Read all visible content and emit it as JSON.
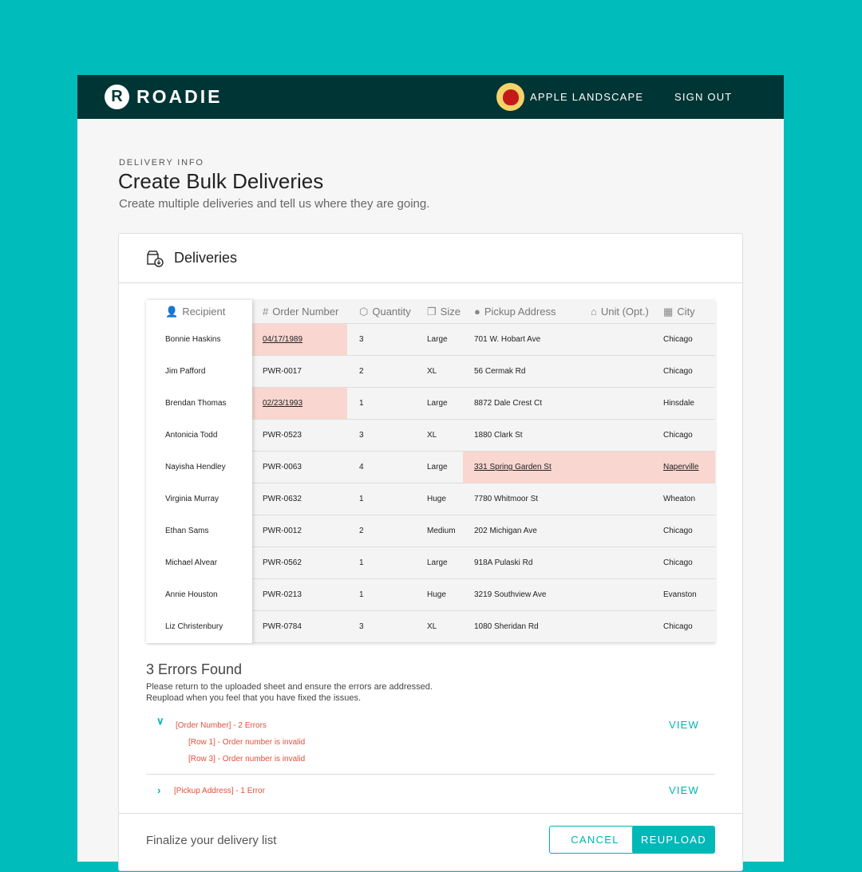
{
  "header": {
    "logo": "ROADIE",
    "account": "APPLE LANDSCAPE",
    "sign_out": "SIGN OUT"
  },
  "page": {
    "eyebrow": "DELIVERY INFO",
    "title": "Create Bulk Deliveries",
    "subtitle": "Create multiple deliveries and tell us where they are going."
  },
  "card": {
    "title": "Deliveries"
  },
  "table": {
    "columns": [
      "Recipient",
      "Order Number",
      "Quantity",
      "Size",
      "Pickup Address",
      "Unit (Opt.)",
      "City"
    ],
    "rows": [
      {
        "recipient": "Bonnie Haskins",
        "order": "04/17/1989",
        "qty": "3",
        "size": "Large",
        "address": "701 W. Hobart Ave",
        "unit": "",
        "city": "Chicago",
        "order_error": true
      },
      {
        "recipient": "Jim Pafford",
        "order": "PWR-0017",
        "qty": "2",
        "size": "XL",
        "address": "56 Cermak Rd",
        "unit": "",
        "city": "Chicago"
      },
      {
        "recipient": "Brendan Thomas",
        "order": "02/23/1993",
        "qty": "1",
        "size": "Large",
        "address": "8872 Dale Crest Ct",
        "unit": "",
        "city": "Hinsdale",
        "order_error": true
      },
      {
        "recipient": "Antonicia Todd",
        "order": "PWR-0523",
        "qty": "3",
        "size": "XL",
        "address": "1880 Clark St",
        "unit": "",
        "city": "Chicago"
      },
      {
        "recipient": "Nayisha Hendley",
        "order": "PWR-0063",
        "qty": "4",
        "size": "Large",
        "address": "331 Spring Garden St",
        "unit": "",
        "city": "Naperville",
        "address_error": true
      },
      {
        "recipient": "Virginia Murray",
        "order": "PWR-0632",
        "qty": "1",
        "size": "Huge",
        "address": "7780 Whitmoor St",
        "unit": "",
        "city": "Wheaton"
      },
      {
        "recipient": "Ethan Sams",
        "order": "PWR-0012",
        "qty": "2",
        "size": "Medium",
        "address": "202 Michigan Ave",
        "unit": "",
        "city": "Chicago"
      },
      {
        "recipient": "Michael Alvear",
        "order": "PWR-0562",
        "qty": "1",
        "size": "Large",
        "address": "918A Pulaski Rd",
        "unit": "",
        "city": "Chicago"
      },
      {
        "recipient": "Annie Houston",
        "order": "PWR-0213",
        "qty": "1",
        "size": "Huge",
        "address": "3219 Southview Ave",
        "unit": "",
        "city": "Evanston"
      },
      {
        "recipient": "Liz  Christenbury",
        "order": "PWR-0784",
        "qty": "3",
        "size": "XL",
        "address": "1080 Sheridan Rd",
        "unit": "",
        "city": "Chicago"
      }
    ]
  },
  "errors": {
    "title": "3 Errors Found",
    "desc1": "Please return to the uploaded sheet and ensure the errors are addressed.",
    "desc2": "Reupload when you feel that you have fixed the issues.",
    "groups": [
      {
        "label": "[Order Number] - 2 Errors",
        "view": "VIEW",
        "expanded": true,
        "items": [
          "[Row 1] - Order number is invalid",
          "[Row 3] - Order number is invalid"
        ]
      },
      {
        "label": "[Pickup Address] - 1 Error",
        "view": "VIEW",
        "expanded": false
      }
    ]
  },
  "footer": {
    "text": "Finalize your delivery list",
    "cancel": "CANCEL",
    "reupload": "REUPLOAD"
  },
  "colors": {
    "background": "#00bcbb",
    "topbar": "#003535",
    "accent": "#00b3b3",
    "error": "#e0503c",
    "error_cell": "#f9d6d0"
  }
}
